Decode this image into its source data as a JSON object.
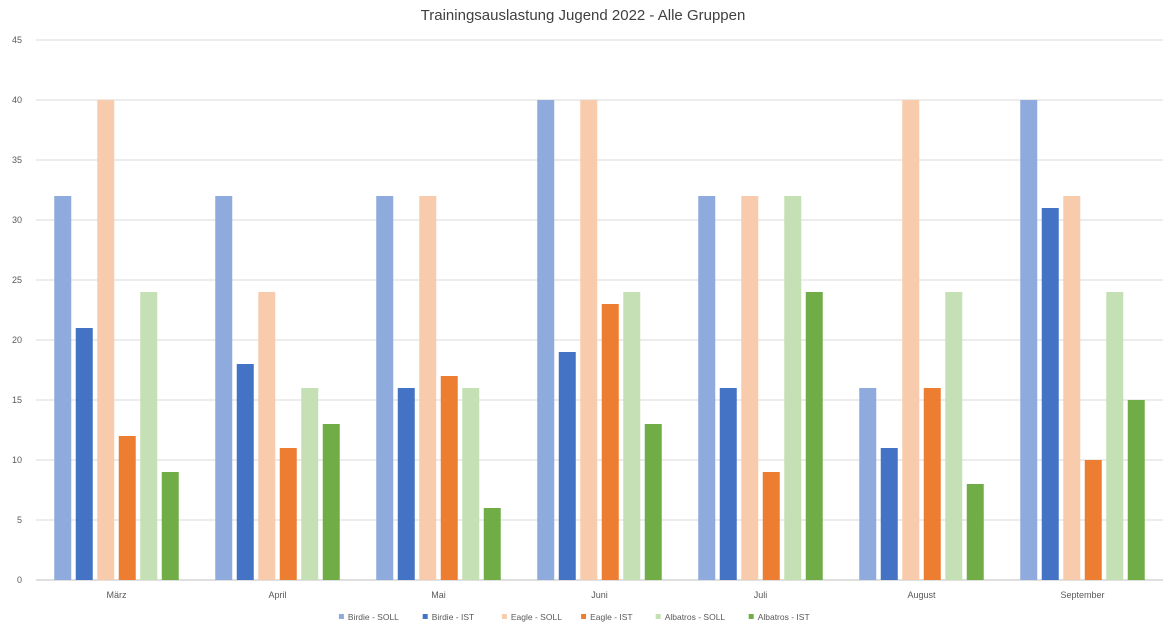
{
  "chart_data": {
    "type": "bar",
    "title": "Trainingsauslastung Jugend 2022 - Alle Gruppen",
    "xlabel": "",
    "ylabel": "",
    "ylim": [
      0,
      45
    ],
    "yticks": [
      0,
      5,
      10,
      15,
      20,
      25,
      30,
      35,
      40,
      45
    ],
    "grid": true,
    "legend_position": "bottom",
    "categories": [
      "März",
      "April",
      "Mai",
      "Juni",
      "Juli",
      "August",
      "September"
    ],
    "series": [
      {
        "name": "Birdie - SOLL",
        "color": "#8FAADC",
        "values": [
          32,
          32,
          32,
          40,
          32,
          16,
          40
        ]
      },
      {
        "name": "Birdie - IST",
        "color": "#4472C4",
        "values": [
          21,
          18,
          16,
          19,
          16,
          11,
          31
        ]
      },
      {
        "name": "Eagle - SOLL",
        "color": "#F8CBAD",
        "values": [
          40,
          24,
          32,
          40,
          32,
          40,
          32
        ]
      },
      {
        "name": "Eagle - IST",
        "color": "#ED7D31",
        "values": [
          12,
          11,
          17,
          23,
          9,
          16,
          10
        ]
      },
      {
        "name": "Albatros - SOLL",
        "color": "#C5E0B4",
        "values": [
          24,
          16,
          16,
          24,
          32,
          24,
          24
        ]
      },
      {
        "name": "Albatros - IST",
        "color": "#70AD47",
        "values": [
          9,
          13,
          6,
          13,
          24,
          8,
          15
        ]
      }
    ]
  }
}
